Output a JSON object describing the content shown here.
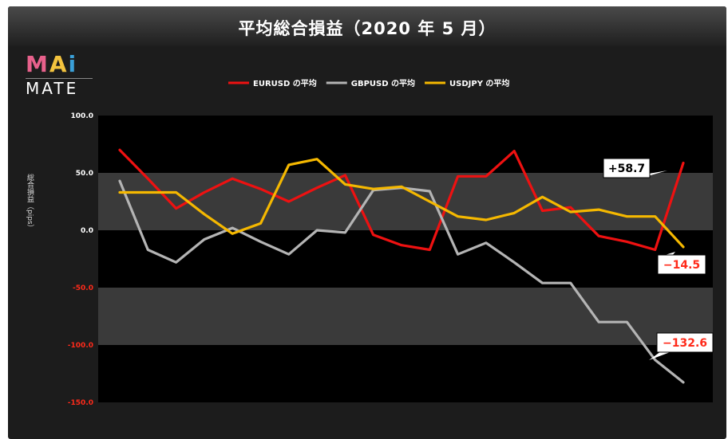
{
  "chart_data": {
    "type": "line",
    "title": "平均総合損益（2020 年 5 月）",
    "ylabel": "総合損益（pips）",
    "xlabel": "",
    "ylim": [
      -150,
      100
    ],
    "yticks": [
      {
        "value": 100,
        "label": "100.0",
        "color": "#ffffff"
      },
      {
        "value": 50,
        "label": "50.0",
        "color": "#ffffff"
      },
      {
        "value": 0,
        "label": "0.0",
        "color": "#ffffff"
      },
      {
        "value": -50,
        "label": "-50.0",
        "color": "#ff2a1a"
      },
      {
        "value": -100,
        "label": "-100.0",
        "color": "#ff2a1a"
      },
      {
        "value": -150,
        "label": "-150.0",
        "color": "#ff2a1a"
      }
    ],
    "grid": true,
    "legend": "top",
    "x": [
      1,
      2,
      3,
      4,
      5,
      6,
      7,
      8,
      9,
      10,
      11,
      12,
      13,
      14,
      15,
      16,
      17,
      18,
      19,
      20,
      21
    ],
    "series": [
      {
        "name": "EURUSD の平均",
        "color": "#ee1111",
        "values": [
          70,
          45,
          19,
          33,
          45,
          36,
          25,
          37,
          48,
          -4,
          -13,
          -17,
          47,
          47,
          69,
          17,
          20,
          -5,
          -10,
          -17,
          58.7
        ]
      },
      {
        "name": "GBPUSD の平均",
        "color": "#b4b4b4",
        "values": [
          43,
          -17,
          -28,
          -8,
          2,
          -10,
          -21,
          0,
          -2,
          35,
          37,
          34,
          -21,
          -11,
          -28,
          -46,
          -46,
          -80,
          -80,
          -113,
          -132.6
        ]
      },
      {
        "name": "USDJPY の平均",
        "color": "#f5b800",
        "values": [
          33,
          33,
          33,
          14,
          -3,
          6,
          57,
          62,
          40,
          36,
          38,
          25,
          12,
          9,
          15,
          29,
          16,
          18,
          12,
          12,
          -14.5
        ]
      }
    ],
    "annotations": [
      {
        "label": "+58.7",
        "series": 0,
        "text_color": "#ffffff"
      },
      {
        "label": "−14.5",
        "series": 2,
        "text_color": "#ff2a1a"
      },
      {
        "label": "−132.6",
        "series": 1,
        "text_color": "#ff2a1a"
      }
    ]
  },
  "logo": {
    "top_m": "M",
    "top_a": "A",
    "top_i": "i",
    "bottom": "MATE"
  }
}
